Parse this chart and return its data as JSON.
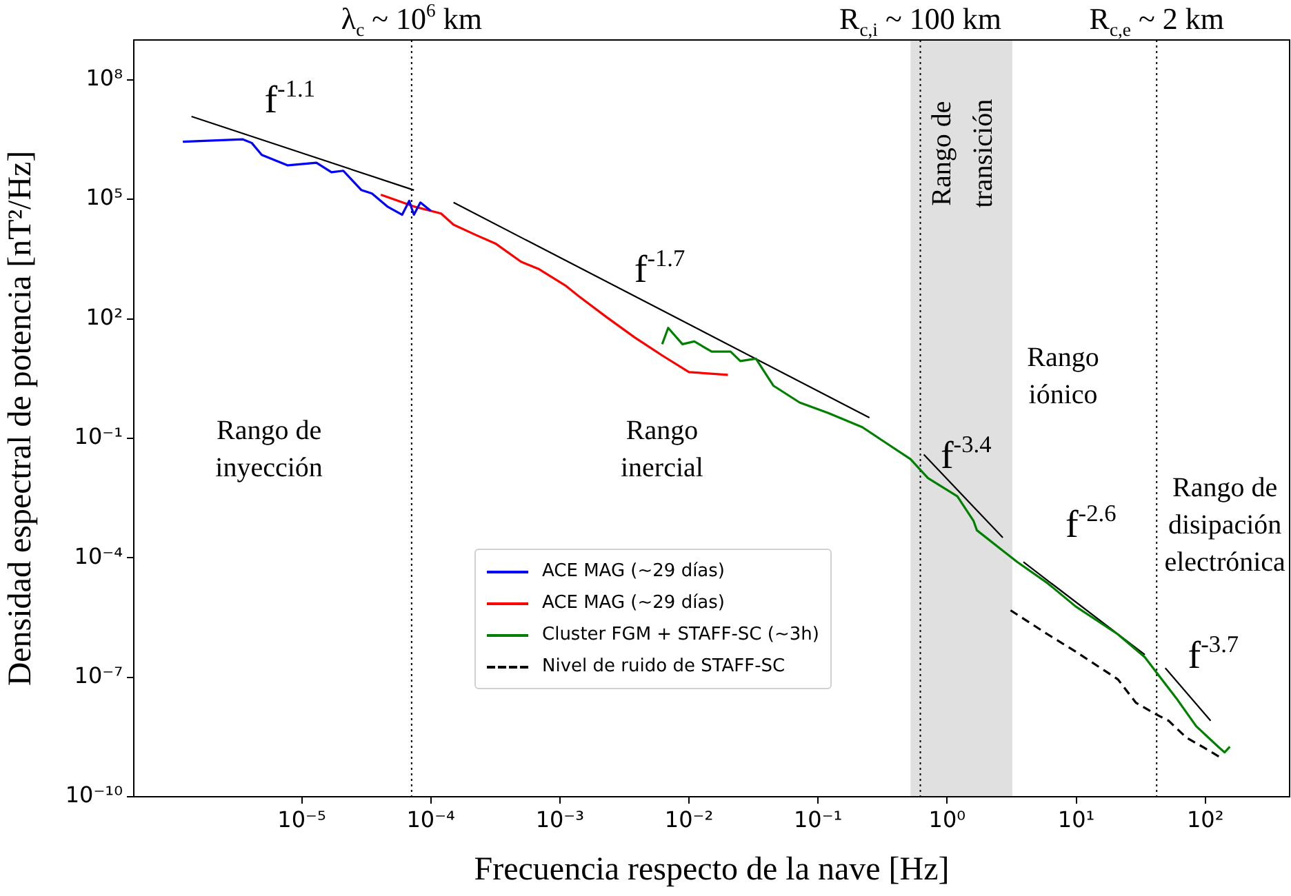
{
  "chart_data": {
    "type": "line",
    "xlabel": "Frecuencia respecto de la nave [Hz]",
    "ylabel": "Densidad espectral de potencia [nT²/Hz]",
    "log": "xy",
    "xlim": [
      5e-07,
      450
    ],
    "ylim": [
      1e-10,
      1000000000.0
    ],
    "xticks": [
      {
        "value": 1e-05,
        "label": "10⁻⁵"
      },
      {
        "value": 0.0001,
        "label": "10⁻⁴"
      },
      {
        "value": 0.001,
        "label": "10⁻³"
      },
      {
        "value": 0.01,
        "label": "10⁻²"
      },
      {
        "value": 0.1,
        "label": "10⁻¹"
      },
      {
        "value": 1,
        "label": "10⁰"
      },
      {
        "value": 10,
        "label": "10¹"
      },
      {
        "value": 100,
        "label": "10²"
      }
    ],
    "yticks": [
      {
        "value": 1e-10,
        "label": "10⁻¹⁰"
      },
      {
        "value": 1e-07,
        "label": "10⁻⁷"
      },
      {
        "value": 0.0001,
        "label": "10⁻⁴"
      },
      {
        "value": 0.1,
        "label": "10⁻¹"
      },
      {
        "value": 100,
        "label": "10²"
      },
      {
        "value": 100000.0,
        "label": "10⁵"
      },
      {
        "value": 100000000.0,
        "label": "10⁸"
      }
    ],
    "legend": "center",
    "series": [
      {
        "name": "ACE MAG (~29 días)",
        "color": "#0000ff",
        "x": [
          1.2e-06,
          3.5e-06,
          4.1e-06,
          4.9e-06,
          7.8e-06,
          1.3e-05,
          1.7e-05,
          2.1e-05,
          2.9e-05,
          3.5e-05,
          4.6e-05,
          6e-05,
          6.8e-05,
          7.4e-05,
          8.3e-05,
          0.0001
        ],
        "values": [
          2800000.0,
          3200000.0,
          2600000.0,
          1300000.0,
          710000.0,
          830000.0,
          480000.0,
          520000.0,
          170000.0,
          140000.0,
          66000.0,
          41000.0,
          91000.0,
          41000.0,
          83000.0,
          51000.0
        ]
      },
      {
        "name": "ACE MAG (~29 días)",
        "color": "#ff0000",
        "x": [
          4.1e-05,
          7.4e-05,
          0.00012,
          0.00015,
          0.00022,
          0.00032,
          0.0005,
          0.00068,
          0.0011,
          0.0014,
          0.0023,
          0.0038,
          0.0062,
          0.01,
          0.02
        ],
        "values": [
          130000.0,
          66000.0,
          44000.0,
          23000.0,
          13000.0,
          7600.0,
          2700.0,
          1800.0,
          690,
          370,
          110,
          34,
          12,
          4.6,
          3.9
        ]
      },
      {
        "name": "Cluster FGM + STAFF-SC (~3h)",
        "color": "#008000",
        "x": [
          0.0062,
          0.0069,
          0.0089,
          0.011,
          0.015,
          0.021,
          0.025,
          0.033,
          0.045,
          0.072,
          0.12,
          0.22,
          0.32,
          0.52,
          0.71,
          1.2,
          1.6,
          1.7,
          2.7,
          3.5,
          6.0,
          9.9,
          21,
          34,
          42,
          60,
          85,
          126,
          141,
          155
        ],
        "values": [
          23,
          59,
          23,
          27,
          15,
          15,
          8.7,
          10,
          2.1,
          0.79,
          0.43,
          0.19,
          0.085,
          0.03,
          0.01,
          0.0035,
          0.00085,
          0.00049,
          0.00015,
          7.8e-05,
          2.3e-05,
          6e-06,
          1.2e-06,
          3.2e-07,
          1.3e-07,
          2.9e-08,
          5.9e-09,
          1.8e-09,
          1.3e-09,
          1.8e-09
        ]
      },
      {
        "name": "Nivel de ruido de STAFF-SC",
        "color": "#000000",
        "line_style": "dashed",
        "x": [
          3.1,
          6.0,
          9.9,
          21,
          29,
          41,
          52,
          71,
          98,
          132
        ],
        "values": [
          4.8e-06,
          1.2e-06,
          4.4e-07,
          8.9e-08,
          2.3e-08,
          1.2e-08,
          8.1e-09,
          3.1e-09,
          1.7e-09,
          9.5e-10
        ]
      },
      {
        "color": "#000000",
        "x": [
          1.4e-06,
          7.4e-05
        ],
        "values": [
          12000000.0,
          170000.0
        ]
      },
      {
        "color": "#000000",
        "x": [
          0.00015,
          0.25
        ],
        "values": [
          83000.0,
          0.33
        ]
      },
      {
        "color": "#000000",
        "x": [
          0.66,
          2.7
        ],
        "values": [
          0.039,
          0.00032
        ]
      },
      {
        "color": "#000000",
        "x": [
          3.9,
          34
        ],
        "values": [
          7.8e-05,
          3.7e-07
        ]
      },
      {
        "color": "#000000",
        "x": [
          49,
          110
        ],
        "values": [
          1.7e-07,
          8.1e-09
        ]
      }
    ],
    "ref_lines": [
      {
        "axis": "x",
        "value": 7.1e-05,
        "label": "λ$_{c}$ ~ 10$^{6}$ km",
        "line_style": "dotted"
      },
      {
        "axis": "x",
        "value": 0.62,
        "label": "R$_{c,i}$ ~ 100 km",
        "line_style": "dotted"
      },
      {
        "axis": "x",
        "value": 42,
        "label": "R$_{c,e}$ ~ 2 km",
        "line_style": "dotted"
      }
    ],
    "bands": [
      {
        "axis": "x",
        "from": 0.52,
        "to": 3.2,
        "label": "Rango de\ntransición",
        "color": "#e0e0e0"
      }
    ],
    "annotations": [
      "f$^{-1.1}$",
      "f$^{-1.7}$",
      "f$^{-3.4}$",
      "f$^{-2.6}$",
      "f$^{-3.7}$",
      "Rango de\ninyección",
      "Rango\ninercial",
      "Rango\niónico",
      "Rango de\ndisipación\nelectrónica"
    ]
  }
}
